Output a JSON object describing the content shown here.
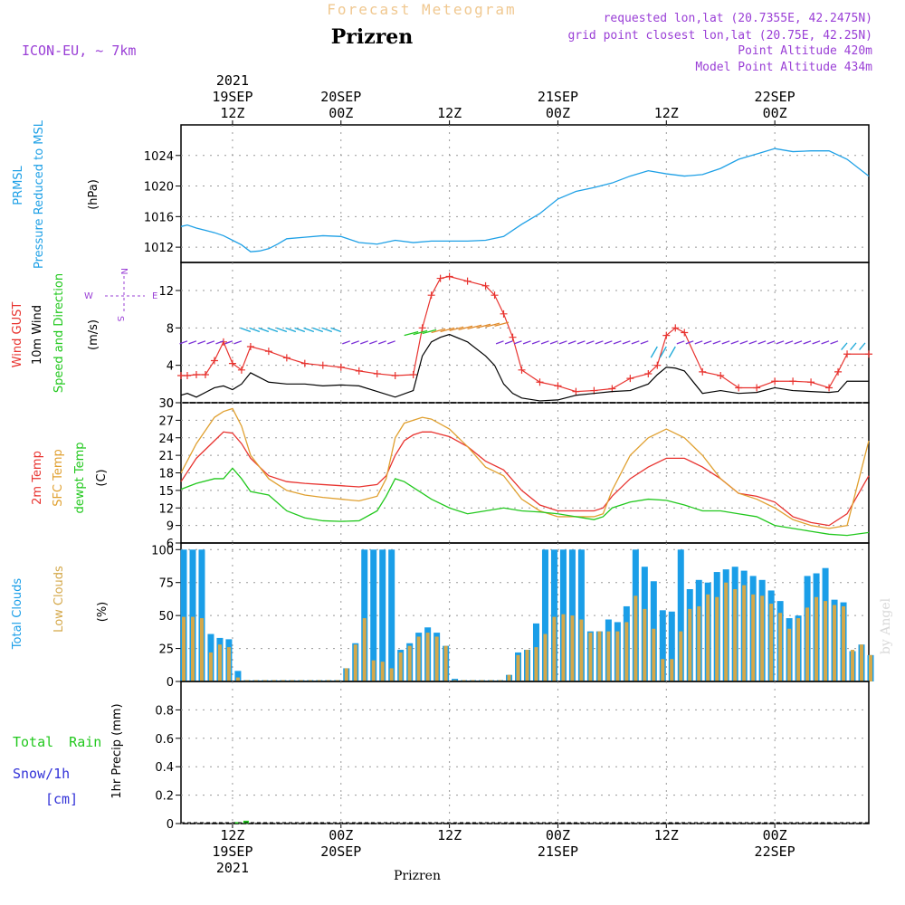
{
  "header": {
    "product": "Forecast Meteogram",
    "location": "Prizren",
    "model": "ICON-EU, ~ 7km",
    "requested": "requested lon,lat (20.7355E, 42.2475N)",
    "gridpoint": "grid point closest lon,lat (20.75E, 42.25N)",
    "point_alt": "Point Altitude 420m",
    "model_alt": "Model Point Altitude 434m",
    "footer_location": "Prizren",
    "watermark": "by Angel"
  },
  "colors": {
    "pressure": "#1ea0e6",
    "gust": "#e8332f",
    "wind": "#000000",
    "temp2m": "#e8332f",
    "sfc": "#e0a030",
    "dewpt": "#22c81e",
    "total_clouds": "#1a9ee8",
    "low_clouds": "#d4a84a",
    "rain": "#22c81e",
    "snow": "#3232d8",
    "purple": "#9a3fd6"
  },
  "time_axis": {
    "top": [
      {
        "t": 12,
        "lines": [
          "2021",
          "19SEP",
          "12Z"
        ]
      },
      {
        "t": 24,
        "lines": [
          "20SEP",
          "00Z"
        ]
      },
      {
        "t": 36,
        "lines": [
          "12Z"
        ]
      },
      {
        "t": 48,
        "lines": [
          "21SEP",
          "00Z"
        ]
      },
      {
        "t": 60,
        "lines": [
          "12Z"
        ]
      },
      {
        "t": 72,
        "lines": [
          "22SEP",
          "00Z"
        ]
      }
    ],
    "bottom": [
      {
        "t": 12,
        "lines": [
          "12Z",
          "19SEP",
          "2021"
        ]
      },
      {
        "t": 24,
        "lines": [
          "00Z",
          "20SEP"
        ]
      },
      {
        "t": 36,
        "lines": [
          "12Z"
        ]
      },
      {
        "t": 48,
        "lines": [
          "00Z",
          "21SEP"
        ]
      },
      {
        "t": 60,
        "lines": [
          "12Z"
        ]
      },
      {
        "t": 72,
        "lines": [
          "00Z",
          "22SEP"
        ]
      }
    ],
    "range": [
      6.3,
      82.4
    ]
  },
  "panels": {
    "pressure": {
      "labels": [
        "PRMSL",
        "Pressure Reduced to MSL"
      ],
      "unit": "(hPa)"
    },
    "wind": {
      "labels": [
        "Wind GUST",
        "10m Wind",
        "Speed and Direction"
      ],
      "unit": "(m/s)",
      "compass": {
        "n": "N",
        "s": "S",
        "w": "W",
        "e": "E"
      }
    },
    "temp": {
      "labels": [
        "2m Temp",
        "SFC Temp",
        "dewpt Temp"
      ],
      "unit": "(C)"
    },
    "clouds": {
      "labels": [
        "Total Clouds",
        "Low Clouds"
      ],
      "unit": "(%)"
    },
    "precip": {
      "labels": [
        "Total Rain",
        "Snow/1h",
        "[cm]"
      ],
      "ylabel": "1hr Precip (mm)"
    }
  },
  "chart_data": [
    {
      "type": "line",
      "panel": "pressure",
      "ylim": [
        1010,
        1028
      ],
      "yticks": [
        1012,
        1016,
        1020,
        1024
      ],
      "x": [
        6.3,
        7,
        8,
        9,
        10,
        11,
        12,
        13,
        14,
        15,
        16,
        17,
        18,
        20,
        22,
        24,
        26,
        28,
        30,
        32,
        34,
        36,
        38,
        40,
        42,
        44,
        46,
        48,
        50,
        52,
        54,
        56,
        58,
        60,
        62,
        64,
        66,
        68,
        70,
        72,
        74,
        76,
        78,
        80,
        82.4
      ],
      "series": [
        {
          "values": [
            1014.7,
            1014.9,
            1014.5,
            1014.2,
            1013.9,
            1013.5,
            1012.9,
            1012.3,
            1011.4,
            1011.5,
            1011.8,
            1012.4,
            1013.1,
            1013.3,
            1013.5,
            1013.4,
            1012.6,
            1012.4,
            1012.9,
            1012.6,
            1012.8,
            1012.8,
            1012.8,
            1012.9,
            1013.4,
            1015.0,
            1016.4,
            1018.3,
            1019.3,
            1019.8,
            1020.4,
            1021.3,
            1022.0,
            1021.6,
            1021.3,
            1021.5,
            1022.3,
            1023.5,
            1024.2,
            1024.9,
            1024.5,
            1024.6,
            1024.6,
            1023.5,
            1021.3
          ]
        }
      ]
    },
    {
      "type": "line",
      "panel": "wind",
      "ylim": [
        0,
        15
      ],
      "yticks": [
        0,
        4,
        8,
        12
      ],
      "x": [
        6.3,
        7,
        8,
        9,
        10,
        11,
        12,
        13,
        14,
        16,
        18,
        20,
        22,
        24,
        26,
        28,
        30,
        32,
        33,
        34,
        35,
        36,
        38,
        40,
        41,
        42,
        43,
        44,
        46,
        48,
        50,
        52,
        54,
        56,
        58,
        59,
        60,
        61,
        62,
        64,
        66,
        68,
        70,
        72,
        74,
        76,
        78,
        79,
        80,
        82.4
      ],
      "gust": [
        2.9,
        2.9,
        3.0,
        3.0,
        4.5,
        6.5,
        4.2,
        3.5,
        6.0,
        5.5,
        4.8,
        4.2,
        4.0,
        3.8,
        3.4,
        3.1,
        2.9,
        3.0,
        8.0,
        11.5,
        13.3,
        13.5,
        13.0,
        12.5,
        11.5,
        9.5,
        7.0,
        3.5,
        2.2,
        1.8,
        1.2,
        1.3,
        1.5,
        2.6,
        3.1,
        4.0,
        7.2,
        8.0,
        7.5,
        3.3,
        2.9,
        1.6,
        1.6,
        2.3,
        2.3,
        2.2,
        1.6,
        3.3,
        5.2,
        5.2
      ],
      "wind": [
        0.8,
        1.0,
        0.6,
        1.1,
        1.6,
        1.8,
        1.4,
        2.0,
        3.2,
        2.2,
        2.0,
        2.0,
        1.8,
        1.9,
        1.8,
        1.2,
        0.6,
        1.3,
        5.0,
        6.5,
        7.0,
        7.3,
        6.5,
        5.0,
        4.0,
        2.0,
        1.0,
        0.5,
        0.2,
        0.3,
        0.8,
        1.0,
        1.2,
        1.3,
        2.0,
        3.0,
        3.8,
        3.7,
        3.4,
        1.0,
        1.3,
        1.0,
        1.1,
        1.6,
        1.3,
        1.2,
        1.1,
        1.2,
        2.3,
        2.3
      ]
    },
    {
      "type": "line",
      "panel": "temp",
      "ylim": [
        6,
        30
      ],
      "yticks": [
        6,
        9,
        12,
        15,
        18,
        21,
        24,
        27,
        30
      ],
      "x": [
        6.3,
        8,
        10,
        11,
        12,
        13,
        14,
        16,
        18,
        20,
        22,
        24,
        26,
        28,
        29,
        30,
        31,
        32,
        33,
        34,
        36,
        38,
        40,
        42,
        44,
        46,
        48,
        50,
        52,
        53,
        54,
        56,
        58,
        60,
        62,
        64,
        66,
        68,
        70,
        72,
        74,
        76,
        78,
        80,
        82.4
      ],
      "series": [
        {
          "name": "2m Temp",
          "values": [
            16.5,
            20.5,
            23.5,
            25.0,
            24.8,
            23.0,
            20.5,
            17.5,
            16.5,
            16.2,
            16.0,
            15.8,
            15.6,
            16.0,
            17.5,
            21.0,
            23.5,
            24.5,
            25.0,
            25.0,
            24.2,
            22.5,
            20.0,
            18.5,
            15.0,
            12.5,
            11.5,
            11.5,
            11.5,
            12.0,
            14.0,
            17.0,
            19.0,
            20.5,
            20.5,
            19.0,
            17.0,
            14.5,
            14.0,
            13.0,
            10.5,
            9.5,
            9.0,
            11.0,
            17.5
          ]
        },
        {
          "name": "SFC Temp",
          "values": [
            18.0,
            23.0,
            27.5,
            28.5,
            29.0,
            26.0,
            21.0,
            17.0,
            15.0,
            14.2,
            13.8,
            13.5,
            13.2,
            14.0,
            17.0,
            24.0,
            26.5,
            27.0,
            27.5,
            27.2,
            25.5,
            22.5,
            19.0,
            17.5,
            13.5,
            11.5,
            10.5,
            10.5,
            10.5,
            11.0,
            15.0,
            21.0,
            24.0,
            25.5,
            24.0,
            21.0,
            17.0,
            14.5,
            13.5,
            12.0,
            10.0,
            9.0,
            8.5,
            9.0,
            23.5
          ]
        },
        {
          "name": "dewpt Temp",
          "values": [
            15.2,
            16.2,
            17.0,
            17.0,
            18.8,
            17.0,
            14.8,
            14.2,
            11.5,
            10.3,
            9.8,
            9.7,
            9.8,
            11.5,
            14.0,
            17.0,
            16.5,
            15.5,
            14.5,
            13.5,
            12.0,
            11.0,
            11.5,
            12.0,
            11.5,
            11.3,
            11.0,
            10.5,
            10.0,
            10.5,
            12.0,
            13.0,
            13.5,
            13.3,
            12.5,
            11.5,
            11.5,
            11.0,
            10.5,
            9.0,
            8.5,
            8.0,
            7.5,
            7.3,
            7.8
          ]
        }
      ]
    },
    {
      "type": "bar",
      "panel": "clouds",
      "ylim": [
        0,
        105
      ],
      "yticks": [
        0,
        25,
        50,
        75,
        100
      ],
      "x": [
        6.6,
        7.6,
        8.6,
        9.6,
        10.6,
        11.6,
        12.6,
        13.6,
        14.6,
        15.6,
        16.6,
        17.6,
        18.6,
        19.6,
        20.6,
        21.6,
        22.6,
        23.6,
        24.6,
        25.6,
        26.6,
        27.6,
        28.6,
        29.6,
        30.6,
        31.6,
        32.6,
        33.6,
        34.6,
        35.6,
        36.6,
        37.6,
        38.6,
        39.6,
        40.6,
        41.6,
        42.6,
        43.6,
        44.6,
        45.6,
        46.6,
        47.6,
        48.6,
        49.6,
        50.6,
        51.6,
        52.6,
        53.6,
        54.6,
        55.6,
        56.6,
        57.6,
        58.6,
        59.6,
        60.6,
        61.6,
        62.6,
        63.6,
        64.6,
        65.6,
        66.6,
        67.6,
        68.6,
        69.6,
        70.6,
        71.6,
        72.6,
        73.6,
        74.6,
        75.6,
        76.6,
        77.6,
        78.6,
        79.6,
        80.6,
        81.6,
        82.6
      ],
      "series": [
        {
          "name": "Total Clouds",
          "values": [
            100,
            100,
            100,
            36,
            33,
            32,
            8,
            1,
            1,
            1,
            1,
            1,
            1,
            1,
            1,
            1,
            1,
            1,
            10,
            29,
            100,
            100,
            100,
            100,
            24,
            29,
            37,
            41,
            37,
            27,
            2,
            1,
            1,
            1,
            1,
            1,
            5,
            22,
            24,
            44,
            100,
            100,
            100,
            100,
            100,
            38,
            38,
            47,
            45,
            57,
            100,
            87,
            76,
            54,
            53,
            100,
            70,
            77,
            75,
            83,
            85,
            87,
            84,
            80,
            77,
            69,
            61,
            48,
            50,
            80,
            82,
            86,
            62,
            60,
            23,
            28,
            20
          ]
        },
        {
          "name": "Low Clouds",
          "values": [
            49,
            49,
            48,
            22,
            28,
            26,
            3,
            1,
            1,
            1,
            1,
            1,
            1,
            1,
            1,
            1,
            1,
            1,
            10,
            28,
            48,
            16,
            15,
            10,
            22,
            27,
            34,
            37,
            34,
            27,
            1,
            1,
            1,
            1,
            1,
            1,
            5,
            20,
            24,
            26,
            36,
            49,
            51,
            50,
            47,
            37,
            38,
            38,
            38,
            45,
            65,
            55,
            40,
            17,
            17,
            38,
            55,
            57,
            66,
            64,
            75,
            70,
            73,
            66,
            65,
            59,
            52,
            40,
            48,
            56,
            64,
            61,
            58,
            57,
            24,
            28,
            20
          ]
        }
      ]
    },
    {
      "type": "bar",
      "panel": "precip",
      "ylim": [
        0,
        1.0
      ],
      "yticks": [
        0,
        0.2,
        0.4,
        0.6,
        0.8
      ],
      "ytick_labels": [
        "0",
        "0.2",
        "0.4",
        "0.6",
        "0.8"
      ],
      "x": [
        12.5,
        13.5
      ],
      "series": [
        {
          "name": "Total Rain",
          "values": [
            0.01,
            0.02
          ]
        }
      ]
    }
  ]
}
